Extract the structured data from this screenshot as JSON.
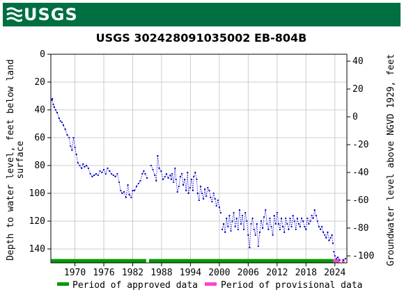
{
  "header": {
    "logo_text": "USGS",
    "bg_color": "#006f41",
    "logo_icon": "usgs-wave-icon"
  },
  "chart_data": {
    "type": "scatter",
    "title": "USGS 302428091035002 EB-804B",
    "ylabel_left": "Depth to water level, feet below land surface",
    "ylabel_right": "Groundwater level above NGVD 1929, feet",
    "x_ticks": [
      "1970",
      "1976",
      "1982",
      "1988",
      "1994",
      "2000",
      "2006",
      "2012",
      "2018",
      "2024"
    ],
    "y_left_ticks": [
      "0",
      "20",
      "40",
      "60",
      "80",
      "100",
      "120",
      "140"
    ],
    "y_right_ticks": [
      "40",
      "20",
      "0",
      "-20",
      "-40",
      "-60",
      "-80",
      "-100"
    ],
    "xlim": [
      1965.0,
      2026.5
    ],
    "ylim_left": [
      0,
      150
    ],
    "ylim_right": [
      45,
      -105
    ],
    "grid": true,
    "series_color": "#0000cc",
    "legend": [
      {
        "label": "Period of approved data",
        "color": "#009900"
      },
      {
        "label": "Period of provisional data",
        "color": "#ff44cc"
      }
    ],
    "periods": [
      {
        "status": "approved",
        "start": 1965.1,
        "end": 1984.8
      },
      {
        "status": "approved",
        "start": 1985.4,
        "end": 2023.7
      },
      {
        "status": "provisional",
        "start": 2023.7,
        "end": 2025.0
      },
      {
        "status": "provisional",
        "start": 2025.5,
        "end": 2026.0
      }
    ],
    "segments": [
      [
        [
          1965.2,
          33
        ],
        [
          1965.3,
          32
        ],
        [
          1965.5,
          36
        ],
        [
          1965.7,
          38
        ],
        [
          1966.0,
          40
        ],
        [
          1966.3,
          42
        ],
        [
          1966.7,
          46
        ],
        [
          1967.0,
          48
        ],
        [
          1967.3,
          49
        ],
        [
          1967.6,
          51
        ],
        [
          1968.0,
          54
        ],
        [
          1968.4,
          58
        ],
        [
          1968.8,
          60
        ],
        [
          1969.1,
          66
        ],
        [
          1969.4,
          69
        ],
        [
          1969.7,
          60
        ],
        [
          1970.0,
          67
        ],
        [
          1970.3,
          72
        ],
        [
          1970.6,
          78
        ],
        [
          1971.0,
          80
        ],
        [
          1971.4,
          82
        ],
        [
          1971.7,
          79
        ],
        [
          1972.0,
          81
        ],
        [
          1972.4,
          80
        ],
        [
          1972.8,
          82
        ],
        [
          1973.2,
          86
        ],
        [
          1973.6,
          88
        ],
        [
          1974.0,
          87
        ],
        [
          1974.4,
          86
        ],
        [
          1974.8,
          87
        ],
        [
          1975.2,
          84
        ],
        [
          1975.6,
          85
        ],
        [
          1976.0,
          83
        ],
        [
          1976.4,
          86
        ],
        [
          1976.8,
          82
        ],
        [
          1977.2,
          84
        ],
        [
          1977.6,
          86
        ],
        [
          1978.0,
          87
        ],
        [
          1978.4,
          88
        ],
        [
          1978.8,
          86
        ],
        [
          1979.2,
          92
        ],
        [
          1979.5,
          98
        ],
        [
          1979.8,
          100
        ],
        [
          1980.2,
          99
        ],
        [
          1980.6,
          103
        ],
        [
          1981.0,
          94
        ],
        [
          1981.3,
          101
        ],
        [
          1981.7,
          103
        ],
        [
          1982.0,
          98
        ],
        [
          1982.4,
          98
        ],
        [
          1982.8,
          95
        ],
        [
          1983.2,
          93
        ],
        [
          1983.6,
          91
        ],
        [
          1984.0,
          86
        ],
        [
          1984.3,
          84
        ],
        [
          1984.6,
          86
        ],
        [
          1985.0,
          89
        ]
      ],
      [
        [
          1985.8,
          80
        ],
        [
          1986.2,
          83
        ],
        [
          1986.6,
          87
        ],
        [
          1986.9,
          91
        ],
        [
          1987.2,
          73
        ],
        [
          1987.5,
          82
        ],
        [
          1987.9,
          84
        ],
        [
          1988.3,
          90
        ],
        [
          1988.7,
          88
        ],
        [
          1989.0,
          86
        ],
        [
          1989.4,
          89
        ],
        [
          1989.8,
          87
        ],
        [
          1990.0,
          90
        ],
        [
          1990.2,
          86
        ],
        [
          1990.5,
          92
        ],
        [
          1990.8,
          82
        ],
        [
          1991.0,
          90
        ],
        [
          1991.3,
          99
        ],
        [
          1991.6,
          95
        ],
        [
          1991.9,
          88
        ],
        [
          1992.2,
          86
        ],
        [
          1992.5,
          94
        ],
        [
          1992.8,
          90
        ],
        [
          1993.1,
          98
        ],
        [
          1993.4,
          85
        ],
        [
          1993.6,
          100
        ],
        [
          1993.9,
          96
        ],
        [
          1994.2,
          90
        ],
        [
          1994.5,
          98
        ],
        [
          1994.7,
          88
        ],
        [
          1995.0,
          85
        ],
        [
          1995.3,
          90
        ],
        [
          1995.5,
          100
        ],
        [
          1995.8,
          105
        ],
        [
          1996.1,
          95
        ],
        [
          1996.4,
          100
        ],
        [
          1996.7,
          104
        ],
        [
          1997.0,
          97
        ],
        [
          1997.3,
          102
        ],
        [
          1997.6,
          96
        ],
        [
          1997.9,
          98
        ],
        [
          1998.2,
          103
        ],
        [
          1998.5,
          106
        ],
        [
          1998.8,
          100
        ],
        [
          1999.1,
          104
        ],
        [
          1999.4,
          109
        ],
        [
          1999.7,
          105
        ],
        [
          2000.0,
          110
        ],
        [
          2000.3,
          114
        ]
      ],
      [
        [
          2000.6,
          126
        ],
        [
          2000.9,
          122
        ],
        [
          2001.2,
          128
        ],
        [
          2001.5,
          118
        ],
        [
          2001.8,
          124
        ],
        [
          2002.1,
          116
        ],
        [
          2002.4,
          127
        ],
        [
          2002.7,
          120
        ],
        [
          2003.0,
          114
        ],
        [
          2003.3,
          124
        ],
        [
          2003.6,
          118
        ],
        [
          2003.9,
          126
        ],
        [
          2004.2,
          112
        ],
        [
          2004.5,
          122
        ],
        [
          2004.8,
          116
        ],
        [
          2005.1,
          126
        ],
        [
          2005.4,
          114
        ],
        [
          2005.7,
          120
        ],
        [
          2006.0,
          130
        ],
        [
          2006.3,
          139
        ],
        [
          2006.6,
          122
        ],
        [
          2006.9,
          118
        ],
        [
          2007.2,
          126
        ],
        [
          2007.5,
          130
        ],
        [
          2007.8,
          122
        ],
        [
          2008.1,
          138
        ],
        [
          2008.4,
          128
        ],
        [
          2008.7,
          120
        ],
        [
          2009.0,
          125
        ],
        [
          2009.3,
          117
        ],
        [
          2009.6,
          112
        ],
        [
          2009.9,
          122
        ],
        [
          2010.2,
          126
        ],
        [
          2010.5,
          118
        ],
        [
          2010.8,
          124
        ],
        [
          2011.1,
          130
        ],
        [
          2011.4,
          116
        ],
        [
          2011.7,
          122
        ],
        [
          2012.0,
          114
        ],
        [
          2012.3,
          122
        ],
        [
          2012.6,
          126
        ],
        [
          2012.9,
          118
        ],
        [
          2013.2,
          124
        ],
        [
          2013.5,
          128
        ],
        [
          2013.8,
          118
        ],
        [
          2014.1,
          122
        ],
        [
          2014.4,
          126
        ],
        [
          2014.7,
          118
        ],
        [
          2015.0,
          124
        ],
        [
          2015.3,
          116
        ],
        [
          2015.6,
          120
        ],
        [
          2015.9,
          126
        ],
        [
          2016.2,
          118
        ],
        [
          2016.5,
          122
        ],
        [
          2016.8,
          124
        ],
        [
          2017.1,
          118
        ],
        [
          2017.4,
          120
        ],
        [
          2017.7,
          124
        ],
        [
          2018.0,
          126
        ],
        [
          2018.3,
          118
        ],
        [
          2018.6,
          122
        ],
        [
          2018.9,
          120
        ],
        [
          2019.2,
          116
        ],
        [
          2019.5,
          118
        ],
        [
          2019.8,
          112
        ],
        [
          2020.1,
          116
        ],
        [
          2020.4,
          120
        ],
        [
          2020.7,
          124
        ],
        [
          2021.0,
          126
        ],
        [
          2021.3,
          124
        ],
        [
          2021.6,
          128
        ],
        [
          2021.9,
          130
        ],
        [
          2022.2,
          132
        ],
        [
          2022.5,
          128
        ],
        [
          2022.8,
          134
        ],
        [
          2023.1,
          132
        ],
        [
          2023.4,
          130
        ],
        [
          2023.6,
          136
        ]
      ],
      [
        [
          2023.8,
          142
        ],
        [
          2024.0,
          145
        ],
        [
          2024.3,
          147
        ],
        [
          2024.6,
          146
        ],
        [
          2025.0,
          148
        ]
      ]
    ],
    "extra_points": [
      [
        2025.8,
        148
      ],
      [
        2026.2,
        147
      ]
    ]
  }
}
